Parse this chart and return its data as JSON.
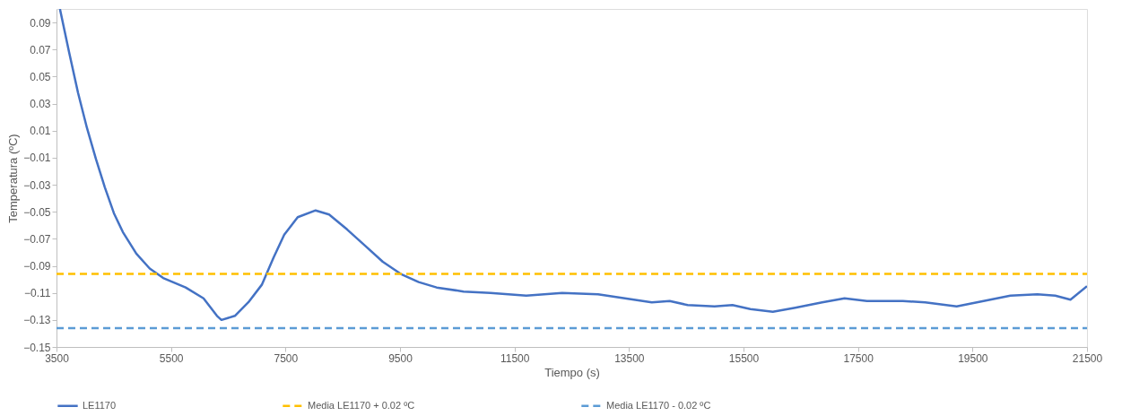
{
  "chart_data": {
    "type": "line",
    "xlabel": "Tiempo (s)",
    "ylabel": "Temperatura (ºC)",
    "xlim": [
      3500,
      21500
    ],
    "xticks": [
      3500,
      5500,
      7500,
      9500,
      11500,
      13500,
      15500,
      17500,
      19500,
      21500
    ],
    "ylim": [
      -0.15,
      0.1
    ],
    "yticks": [
      -0.15,
      -0.13,
      -0.11,
      -0.09,
      -0.07,
      -0.05,
      -0.03,
      -0.01,
      0.01,
      0.03,
      0.05,
      0.07,
      0.09
    ],
    "grid": false,
    "legend": "bottom",
    "series": [
      {
        "name": "LE1170",
        "color": "#4472c4",
        "line_style": "solid",
        "x": [
          3560,
          3720,
          3876,
          4032,
          4189,
          4345,
          4502,
          4659,
          4894,
          5128,
          5363,
          5755,
          6068,
          6303,
          6381,
          6616,
          6851,
          7086,
          7290,
          7478,
          7713,
          8026,
          8261,
          8574,
          8887,
          9200,
          9513,
          9826,
          10140,
          10610,
          11080,
          11706,
          12332,
          12959,
          13585,
          13898,
          14211,
          14524,
          14994,
          15307,
          15620,
          16012,
          16404,
          16873,
          17265,
          17656,
          17970,
          18283,
          18674,
          19223,
          19693,
          20162,
          20632,
          20945,
          21211,
          21500
        ],
        "values": [
          0.1,
          0.068,
          0.038,
          0.012,
          -0.011,
          -0.032,
          -0.051,
          -0.065,
          -0.081,
          -0.092,
          -0.099,
          -0.106,
          -0.114,
          -0.127,
          -0.13,
          -0.127,
          -0.117,
          -0.104,
          -0.084,
          -0.067,
          -0.054,
          -0.049,
          -0.052,
          -0.063,
          -0.075,
          -0.087,
          -0.096,
          -0.102,
          -0.106,
          -0.109,
          -0.11,
          -0.112,
          -0.11,
          -0.111,
          -0.115,
          -0.117,
          -0.116,
          -0.119,
          -0.12,
          -0.119,
          -0.122,
          -0.124,
          -0.121,
          -0.117,
          -0.114,
          -0.116,
          -0.116,
          -0.116,
          -0.117,
          -0.12,
          -0.116,
          -0.112,
          -0.111,
          -0.112,
          -0.115,
          -0.105
        ]
      },
      {
        "name": "Media LE1170 + 0.02 ºC",
        "color": "#ffc000",
        "line_style": "dashed",
        "x": [
          3500,
          21500
        ],
        "values": [
          -0.096,
          -0.096
        ]
      },
      {
        "name": "Media LE1170 - 0.02 ºC",
        "color": "#5b9bd5",
        "line_style": "dashed",
        "x": [
          3500,
          21500
        ],
        "values": [
          -0.136,
          -0.136
        ]
      }
    ]
  }
}
